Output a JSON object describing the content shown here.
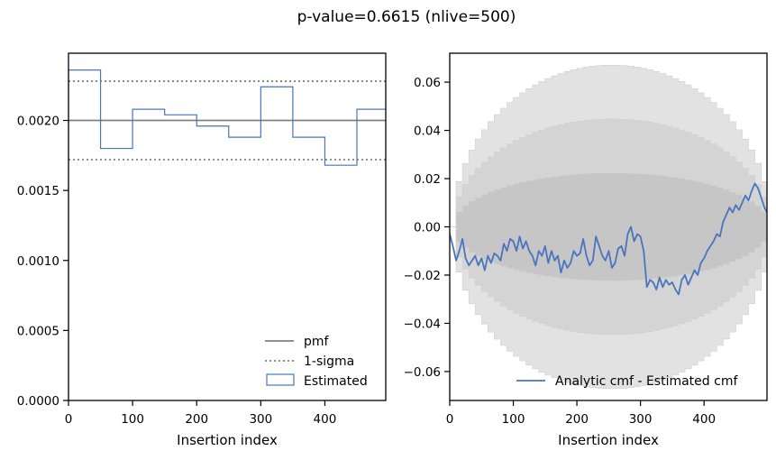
{
  "figure": {
    "title": "p-value=0.6615 (nlive=500)"
  },
  "chart_data": [
    {
      "type": "step",
      "panel": "left",
      "xlabel": "Insertion index",
      "ylabel": "",
      "xlim": [
        0,
        495
      ],
      "ylim": [
        0.0,
        0.00248
      ],
      "xticks": [
        0,
        100,
        200,
        300,
        400
      ],
      "xtick_labels": [
        "0",
        "100",
        "200",
        "300",
        "400"
      ],
      "yticks": [
        0.0,
        0.0005,
        0.001,
        0.0015,
        0.002
      ],
      "ytick_labels": [
        "0.0000",
        "0.0005",
        "0.0010",
        "0.0015",
        "0.0020"
      ],
      "bin_edges": [
        0,
        50,
        100,
        150,
        200,
        250,
        300,
        350,
        400,
        450,
        500
      ],
      "estimated": [
        0.00236,
        0.0018,
        0.00208,
        0.00204,
        0.00196,
        0.00188,
        0.00224,
        0.00188,
        0.00168,
        0.00208
      ],
      "pmf": 0.002,
      "sigma_upper": 0.00228,
      "sigma_lower": 0.00172,
      "legend": {
        "loc": "lower-right",
        "entries": [
          "pmf",
          "1-sigma",
          "Estimated"
        ]
      },
      "colors": {
        "pmf": "#808080",
        "sigma": "#808080",
        "estimated": "#4a74be"
      }
    },
    {
      "type": "line",
      "panel": "right",
      "xlabel": "Insertion index",
      "ylabel": "",
      "xlim": [
        0,
        499
      ],
      "ylim": [
        -0.072,
        0.072
      ],
      "xticks": [
        0,
        100,
        200,
        300,
        400
      ],
      "xtick_labels": [
        "0",
        "100",
        "200",
        "300",
        "400"
      ],
      "yticks": [
        -0.06,
        -0.04,
        -0.02,
        0.0,
        0.02,
        0.04,
        0.06
      ],
      "ytick_labels": [
        "−0.06",
        "−0.04",
        "−0.02",
        "0.00",
        "0.02",
        "0.04",
        "0.06"
      ],
      "sigma_bands": [
        1,
        2,
        3
      ],
      "nlive": 500,
      "series": [
        {
          "name": "Analytic cmf - Estimated cmf",
          "color": "#4a74be",
          "x": [
            0,
            5,
            10,
            15,
            20,
            25,
            30,
            35,
            40,
            45,
            50,
            55,
            60,
            65,
            70,
            75,
            80,
            85,
            90,
            95,
            100,
            105,
            110,
            115,
            120,
            125,
            130,
            135,
            140,
            145,
            150,
            155,
            160,
            165,
            170,
            175,
            180,
            185,
            190,
            195,
            200,
            205,
            210,
            215,
            220,
            225,
            230,
            235,
            240,
            245,
            250,
            255,
            260,
            265,
            270,
            275,
            280,
            285,
            290,
            295,
            300,
            305,
            310,
            315,
            320,
            325,
            330,
            335,
            340,
            345,
            350,
            355,
            360,
            365,
            370,
            375,
            380,
            385,
            390,
            395,
            400,
            405,
            410,
            415,
            420,
            425,
            430,
            435,
            440,
            445,
            450,
            455,
            460,
            465,
            470,
            475,
            480,
            485,
            490,
            495,
            499
          ],
          "values": [
            -0.003,
            -0.008,
            -0.014,
            -0.01,
            -0.005,
            -0.013,
            -0.016,
            -0.014,
            -0.012,
            -0.016,
            -0.013,
            -0.018,
            -0.012,
            -0.015,
            -0.011,
            -0.012,
            -0.014,
            -0.007,
            -0.01,
            -0.005,
            -0.006,
            -0.01,
            -0.004,
            -0.009,
            -0.006,
            -0.01,
            -0.012,
            -0.016,
            -0.01,
            -0.012,
            -0.008,
            -0.015,
            -0.01,
            -0.014,
            -0.012,
            -0.019,
            -0.014,
            -0.017,
            -0.015,
            -0.01,
            -0.012,
            -0.011,
            -0.005,
            -0.012,
            -0.016,
            -0.014,
            -0.004,
            -0.008,
            -0.012,
            -0.014,
            -0.01,
            -0.017,
            -0.015,
            -0.009,
            -0.008,
            -0.012,
            -0.003,
            0.0,
            -0.006,
            -0.003,
            -0.004,
            -0.01,
            -0.025,
            -0.022,
            -0.023,
            -0.026,
            -0.021,
            -0.025,
            -0.022,
            -0.024,
            -0.023,
            -0.026,
            -0.028,
            -0.022,
            -0.02,
            -0.024,
            -0.021,
            -0.018,
            -0.02,
            -0.015,
            -0.013,
            -0.01,
            -0.008,
            -0.006,
            -0.003,
            -0.004,
            0.002,
            0.005,
            0.008,
            0.006,
            0.009,
            0.007,
            0.01,
            0.013,
            0.011,
            0.015,
            0.018,
            0.016,
            0.012,
            0.008,
            0.006
          ]
        }
      ],
      "legend": {
        "loc": "lower-right",
        "entries": [
          "Analytic cmf - Estimated cmf"
        ]
      },
      "colors": {
        "band_inner": "#c6c6c6",
        "band_middle": "#d4d4d4",
        "band_outer": "#e2e2e2"
      }
    }
  ]
}
